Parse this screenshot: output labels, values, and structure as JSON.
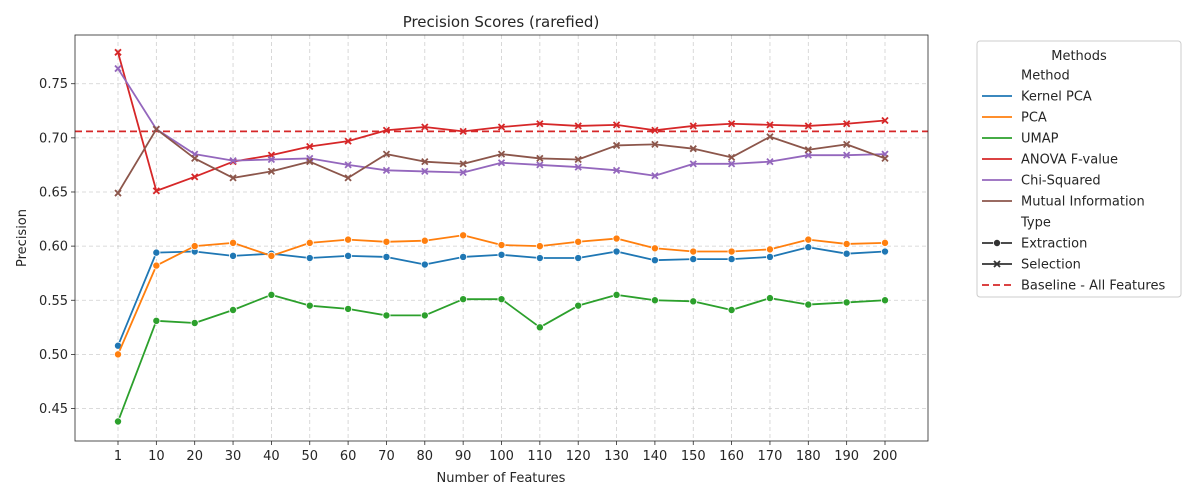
{
  "chart_data": {
    "type": "line",
    "title": "Precision Scores (rarefied)",
    "xlabel": "Number of Features",
    "ylabel": "Precision",
    "categories": [
      "1",
      "10",
      "20",
      "30",
      "40",
      "50",
      "60",
      "70",
      "80",
      "90",
      "100",
      "110",
      "120",
      "130",
      "140",
      "150",
      "160",
      "170",
      "180",
      "190",
      "200"
    ],
    "ylim": [
      0.42,
      0.795
    ],
    "yticks": [
      "0.45",
      "0.50",
      "0.55",
      "0.60",
      "0.65",
      "0.70",
      "0.75"
    ],
    "grid": true,
    "baseline": {
      "name": "Baseline - All Features",
      "value": 0.706,
      "color": "#d62728"
    },
    "legend": {
      "title": "Methods",
      "placement": "outside-right",
      "method_header": "Method",
      "type_header": "Type",
      "types": [
        {
          "name": "Extraction",
          "marker": "circle"
        },
        {
          "name": "Selection",
          "marker": "x"
        }
      ]
    },
    "series": [
      {
        "name": "Kernel PCA",
        "type": "Extraction",
        "color": "#1f77b4",
        "values": [
          0.508,
          0.594,
          0.595,
          0.591,
          0.593,
          0.589,
          0.591,
          0.59,
          0.583,
          0.59,
          0.592,
          0.589,
          0.589,
          0.595,
          0.587,
          0.588,
          0.588,
          0.59,
          0.599,
          0.593,
          0.595
        ]
      },
      {
        "name": "PCA",
        "type": "Extraction",
        "color": "#ff7f0e",
        "values": [
          0.5,
          0.582,
          0.6,
          0.603,
          0.591,
          0.603,
          0.606,
          0.604,
          0.605,
          0.61,
          0.601,
          0.6,
          0.604,
          0.607,
          0.598,
          0.595,
          0.595,
          0.597,
          0.606,
          0.602,
          0.603
        ]
      },
      {
        "name": "UMAP",
        "type": "Extraction",
        "color": "#2ca02c",
        "values": [
          0.438,
          0.531,
          0.529,
          0.541,
          0.555,
          0.545,
          0.542,
          0.536,
          0.536,
          0.551,
          0.551,
          0.525,
          0.545,
          0.555,
          0.55,
          0.549,
          0.541,
          0.552,
          0.546,
          0.548,
          0.55
        ]
      },
      {
        "name": "ANOVA F-value",
        "type": "Selection",
        "color": "#d62728",
        "values": [
          0.779,
          0.651,
          0.664,
          0.678,
          0.684,
          0.692,
          0.697,
          0.707,
          0.71,
          0.706,
          0.71,
          0.713,
          0.711,
          0.712,
          0.707,
          0.711,
          0.713,
          0.712,
          0.711,
          0.713,
          0.716
        ]
      },
      {
        "name": "Chi-Squared",
        "type": "Selection",
        "color": "#9467bd",
        "values": [
          0.764,
          0.708,
          0.685,
          0.679,
          0.68,
          0.681,
          0.675,
          0.67,
          0.669,
          0.668,
          0.677,
          0.675,
          0.673,
          0.67,
          0.665,
          0.676,
          0.676,
          0.678,
          0.684,
          0.684,
          0.685
        ]
      },
      {
        "name": "Mutual Information",
        "type": "Selection",
        "color": "#8c564b",
        "values": [
          0.649,
          0.708,
          0.681,
          0.663,
          0.669,
          0.678,
          0.663,
          0.685,
          0.678,
          0.676,
          0.685,
          0.681,
          0.68,
          0.693,
          0.694,
          0.69,
          0.682,
          0.701,
          0.689,
          0.694,
          0.681
        ]
      }
    ]
  }
}
